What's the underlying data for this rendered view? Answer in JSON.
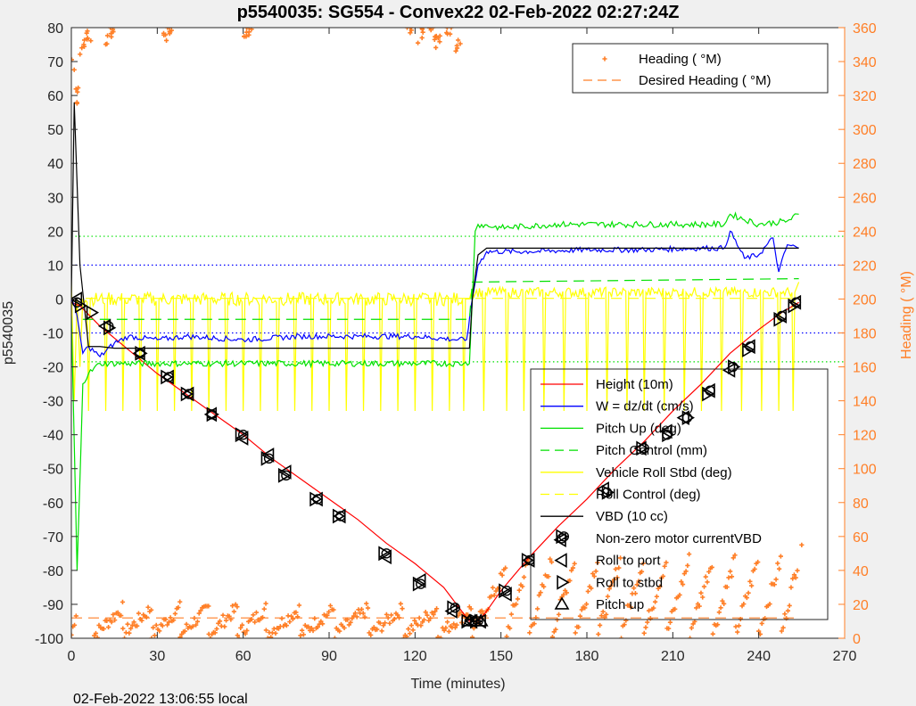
{
  "chart_data": {
    "type": "line",
    "title": "p5540035: SG554 - Convex22 02-Feb-2022 02:27:24Z",
    "xlabel": "Time (minutes)",
    "ylabel_left": "p5540035",
    "ylabel_right": "Heading (  °M)",
    "footer": "02-Feb-2022 13:06:55 local",
    "xlim": [
      0,
      270
    ],
    "ylim_left": [
      -100,
      80
    ],
    "ylim_right": [
      0,
      360
    ],
    "xticks": [
      "0",
      "30",
      "60",
      "90",
      "120",
      "150",
      "180",
      "210",
      "240",
      "270"
    ],
    "yticks_left": [
      "80",
      "70",
      "60",
      "50",
      "40",
      "30",
      "20",
      "10",
      "0",
      "-10",
      "-20",
      "-30",
      "-40",
      "-50",
      "-60",
      "-70",
      "-80",
      "-90",
      "-100"
    ],
    "yticks_right": [
      "360",
      "340",
      "320",
      "300",
      "280",
      "260",
      "240",
      "220",
      "200",
      "180",
      "160",
      "140",
      "120",
      "100",
      "80",
      "60",
      "40",
      "20",
      "0"
    ],
    "legend_top": [
      {
        "label": "Heading (  °M)",
        "style": "plus",
        "color": "#ff7f27"
      },
      {
        "label": "Desired Heading (     °M)",
        "style": "dashed",
        "color": "#ff7f27"
      }
    ],
    "legend_bottom": [
      {
        "label": "Height (10m)",
        "style": "solid",
        "color": "#ff0000"
      },
      {
        "label": "W = dz/dt (cm/s)",
        "style": "solid",
        "color": "#0000ff"
      },
      {
        "label": "Pitch Up (deg)",
        "style": "solid",
        "color": "#00e000"
      },
      {
        "label": "Pitch Control (mm)",
        "style": "dashed",
        "color": "#00e000"
      },
      {
        "label": "Vehicle Roll Stbd (deg)",
        "style": "solid",
        "color": "#ffff00"
      },
      {
        "label": "Roll Control (deg)",
        "style": "dashed",
        "color": "#ffff00"
      },
      {
        "label": "VBD (10 cc)",
        "style": "solid",
        "color": "#000000"
      },
      {
        "label": "Non-zero motor currentVBD",
        "style": "circle",
        "color": "#000000"
      },
      {
        "label": "Roll to port",
        "style": "tri-left",
        "color": "#000000"
      },
      {
        "label": "Roll to stbd",
        "style": "tri-right",
        "color": "#000000"
      },
      {
        "label": "Pitch up",
        "style": "tri-up",
        "color": "#000000"
      }
    ],
    "ref_lines": [
      {
        "y": 18.5,
        "color": "#00e000"
      },
      {
        "y": 10,
        "color": "#0000ff"
      },
      {
        "y": -10,
        "color": "#0000ff"
      },
      {
        "y": -18.5,
        "color": "#00e000"
      }
    ],
    "series": [
      {
        "name": "Height (10m)",
        "color": "#ff0000",
        "x": [
          0,
          3,
          10,
          20,
          30,
          40,
          50,
          60,
          70,
          80,
          90,
          100,
          110,
          120,
          130,
          139,
          142,
          145,
          150,
          160,
          170,
          180,
          190,
          200,
          210,
          220,
          230,
          240,
          248,
          254
        ],
        "y": [
          -1,
          -2,
          -8,
          -15,
          -22,
          -28,
          -34,
          -40,
          -47,
          -53,
          -59,
          -65,
          -72,
          -78,
          -85,
          -95,
          -95,
          -92,
          -86,
          -76,
          -67,
          -59,
          -50,
          -42,
          -33,
          -25,
          -16,
          -9,
          -4,
          -1
        ]
      },
      {
        "name": "W = dz/dt (cm/s)",
        "color": "#0000ff",
        "x": [
          0,
          2,
          4,
          6,
          10,
          15,
          20,
          30,
          40,
          60,
          80,
          100,
          120,
          135,
          138,
          140,
          142,
          145,
          160,
          180,
          200,
          220,
          228,
          230,
          235,
          240,
          245,
          247,
          250,
          254
        ],
        "y": [
          0,
          -5,
          -16,
          -14,
          -17,
          -13,
          -11,
          -12,
          -11,
          -12,
          -11,
          -11,
          -11,
          -12,
          -12,
          0,
          10,
          14,
          14,
          14.5,
          14.5,
          15,
          15,
          20,
          12,
          13,
          18,
          8,
          16,
          15
        ]
      },
      {
        "name": "Pitch Up (deg)",
        "color": "#00e000",
        "x": [
          0,
          2,
          4,
          6,
          10,
          20,
          40,
          60,
          80,
          100,
          120,
          137,
          139,
          140,
          141,
          142,
          150,
          170,
          190,
          210,
          228,
          230,
          240,
          250,
          254
        ],
        "y": [
          -5,
          -80,
          -25,
          -22,
          -19,
          -19,
          -19,
          -19,
          -19,
          -19,
          -19,
          -19,
          -19,
          0,
          20,
          22,
          21,
          22,
          22,
          22,
          22,
          25,
          22,
          23,
          25
        ]
      },
      {
        "name": "Pitch Control (mm)",
        "color": "#00e000",
        "dashed": true,
        "x": [
          4,
          139,
          140,
          254
        ],
        "y": [
          -6,
          -6,
          5,
          6
        ]
      },
      {
        "name": "VBD (10 cc)",
        "color": "#000000",
        "x": [
          0,
          1,
          3,
          6,
          10,
          15,
          138,
          139,
          140,
          142,
          145,
          254
        ],
        "y": [
          0,
          58,
          10,
          -14,
          -14,
          -14.5,
          -14.5,
          -14.5,
          0,
          13,
          15,
          15
        ]
      },
      {
        "name": "Vehicle Roll Stbd (deg)",
        "color": "#ffff00",
        "x": [
          0,
          5,
          138,
          140,
          254
        ],
        "y": [
          0,
          0,
          0,
          2,
          2
        ]
      },
      {
        "name": "Roll Control (deg)",
        "color": "#ffff00",
        "dashed": true,
        "x": [
          5,
          254
        ],
        "y": [
          0.2,
          0.2
        ]
      },
      {
        "name": "Desired Heading",
        "color": "#ff7f27",
        "dashed": true,
        "axis": "right",
        "x": [
          0,
          254
        ],
        "y": [
          12,
          12
        ]
      }
    ],
    "heading_wraps": [
      {
        "x": [
          0,
          2,
          4,
          6
        ],
        "y": [
          340,
          320,
          348,
          355
        ]
      },
      {
        "x": [
          13,
          14
        ],
        "y": [
          352,
          357
        ]
      },
      {
        "x": [
          33,
          35
        ],
        "y": [
          357,
          360
        ]
      },
      {
        "x": [
          61,
          62
        ],
        "y": [
          359,
          360
        ]
      },
      {
        "x": [
          118,
          122,
          126,
          128
        ],
        "y": [
          360,
          355,
          357,
          352
        ]
      },
      {
        "x": [
          132,
          135
        ],
        "y": [
          360,
          350
        ]
      }
    ],
    "heading_low_segments": [
      [
        0,
        2
      ],
      [
        8,
        18
      ],
      [
        18,
        28
      ],
      [
        28,
        38
      ],
      [
        38,
        48
      ],
      [
        48,
        58
      ],
      [
        58,
        68
      ],
      [
        68,
        80
      ],
      [
        80,
        92
      ],
      [
        92,
        104
      ],
      [
        104,
        116
      ],
      [
        116,
        128
      ],
      [
        128,
        140
      ]
    ],
    "heading_rising_segments": [
      [
        140,
        152
      ],
      [
        152,
        160
      ],
      [
        160,
        168
      ],
      [
        168,
        176
      ],
      [
        176,
        184
      ],
      [
        184,
        192
      ],
      [
        192,
        200
      ],
      [
        200,
        208
      ],
      [
        208,
        216
      ],
      [
        216,
        224
      ],
      [
        224,
        232
      ],
      [
        232,
        240
      ],
      [
        240,
        248
      ],
      [
        248,
        254
      ]
    ],
    "markers": {
      "tri_right": [
        [
          3,
          -2
        ],
        [
          7,
          -4
        ],
        [
          13,
          -8.5
        ],
        [
          24,
          -16
        ],
        [
          33,
          -23
        ],
        [
          40,
          -28
        ],
        [
          49,
          -34
        ],
        [
          59,
          -40
        ],
        [
          68,
          -47
        ],
        [
          74,
          -52
        ],
        [
          85,
          -59
        ],
        [
          93,
          -64
        ],
        [
          109,
          -75
        ],
        [
          121,
          -84
        ],
        [
          133,
          -91
        ],
        [
          138,
          -95
        ],
        [
          141,
          -95
        ],
        [
          151,
          -86
        ],
        [
          159,
          -77
        ],
        [
          171,
          -70
        ],
        [
          187,
          -57
        ],
        [
          199,
          -44
        ],
        [
          208,
          -40
        ],
        [
          215,
          -35
        ],
        [
          222,
          -28
        ],
        [
          231,
          -20
        ],
        [
          236,
          -15
        ],
        [
          247,
          -6
        ],
        [
          252,
          -2
        ]
      ],
      "tri_left": [
        [
          2,
          0
        ],
        [
          12,
          -8
        ],
        [
          24,
          -16
        ],
        [
          34,
          -23
        ],
        [
          41,
          -28
        ],
        [
          49,
          -34
        ],
        [
          60,
          -41
        ],
        [
          69,
          -46
        ],
        [
          75,
          -51
        ],
        [
          86,
          -59
        ],
        [
          94,
          -64
        ],
        [
          110,
          -76
        ],
        [
          122,
          -83
        ],
        [
          133,
          -92
        ],
        [
          140,
          -95
        ],
        [
          143,
          -95
        ],
        [
          152,
          -87
        ],
        [
          160,
          -77
        ],
        [
          171,
          -71
        ],
        [
          186,
          -56
        ],
        [
          199,
          -44
        ],
        [
          208,
          -39
        ],
        [
          214,
          -35
        ],
        [
          223,
          -27
        ],
        [
          230,
          -21
        ],
        [
          237,
          -14
        ],
        [
          248,
          -5
        ],
        [
          253,
          -1
        ]
      ],
      "circles": [
        [
          2,
          -1
        ],
        [
          13,
          -8
        ],
        [
          24,
          -16
        ],
        [
          34,
          -23
        ],
        [
          41,
          -28
        ],
        [
          49,
          -34
        ],
        [
          60,
          -40
        ],
        [
          69,
          -47
        ],
        [
          75,
          -52
        ],
        [
          86,
          -59
        ],
        [
          94,
          -64
        ],
        [
          110,
          -75
        ],
        [
          122,
          -84
        ],
        [
          134,
          -91
        ],
        [
          139,
          -95
        ],
        [
          142,
          -95
        ],
        [
          152,
          -86
        ],
        [
          160,
          -77
        ],
        [
          172,
          -70
        ],
        [
          187,
          -57
        ],
        [
          200,
          -44
        ],
        [
          208,
          -40
        ],
        [
          215,
          -35
        ],
        [
          223,
          -27
        ],
        [
          231,
          -20
        ],
        [
          237,
          -14
        ],
        [
          248,
          -5
        ],
        [
          253,
          -1
        ]
      ],
      "orange_plus_single": [
        [
          255,
          55
        ]
      ]
    }
  }
}
